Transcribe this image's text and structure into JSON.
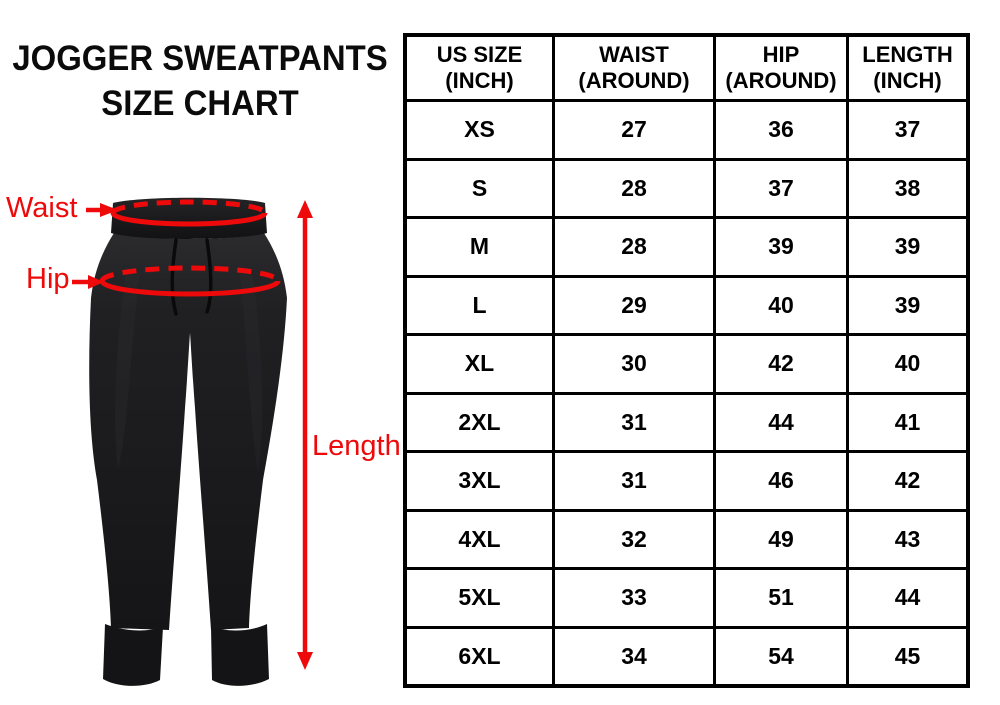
{
  "title": {
    "line1": "JOGGER SWEATPANTS",
    "line2": "SIZE CHART"
  },
  "diagram": {
    "waist_label": "Waist",
    "hip_label": "Hip",
    "length_label": "Length",
    "annotation_color": "#ee0a0a",
    "pants_color": "#1d1d1f"
  },
  "chart_data": {
    "type": "table",
    "title": "JOGGER SWEATPANTS SIZE CHART",
    "columns": [
      {
        "line1": "US SIZE",
        "line2": "(INCH)"
      },
      {
        "line1": "WAIST",
        "line2": "(AROUND)"
      },
      {
        "line1": "HIP",
        "line2": "(AROUND)"
      },
      {
        "line1": "LENGTH",
        "line2": "(INCH)"
      }
    ],
    "rows": [
      [
        "XS",
        "27",
        "36",
        "37"
      ],
      [
        "S",
        "28",
        "37",
        "38"
      ],
      [
        "M",
        "28",
        "39",
        "39"
      ],
      [
        "L",
        "29",
        "40",
        "39"
      ],
      [
        "XL",
        "30",
        "42",
        "40"
      ],
      [
        "2XL",
        "31",
        "44",
        "41"
      ],
      [
        "3XL",
        "31",
        "46",
        "42"
      ],
      [
        "4XL",
        "32",
        "49",
        "43"
      ],
      [
        "5XL",
        "33",
        "51",
        "44"
      ],
      [
        "6XL",
        "34",
        "54",
        "45"
      ]
    ]
  }
}
